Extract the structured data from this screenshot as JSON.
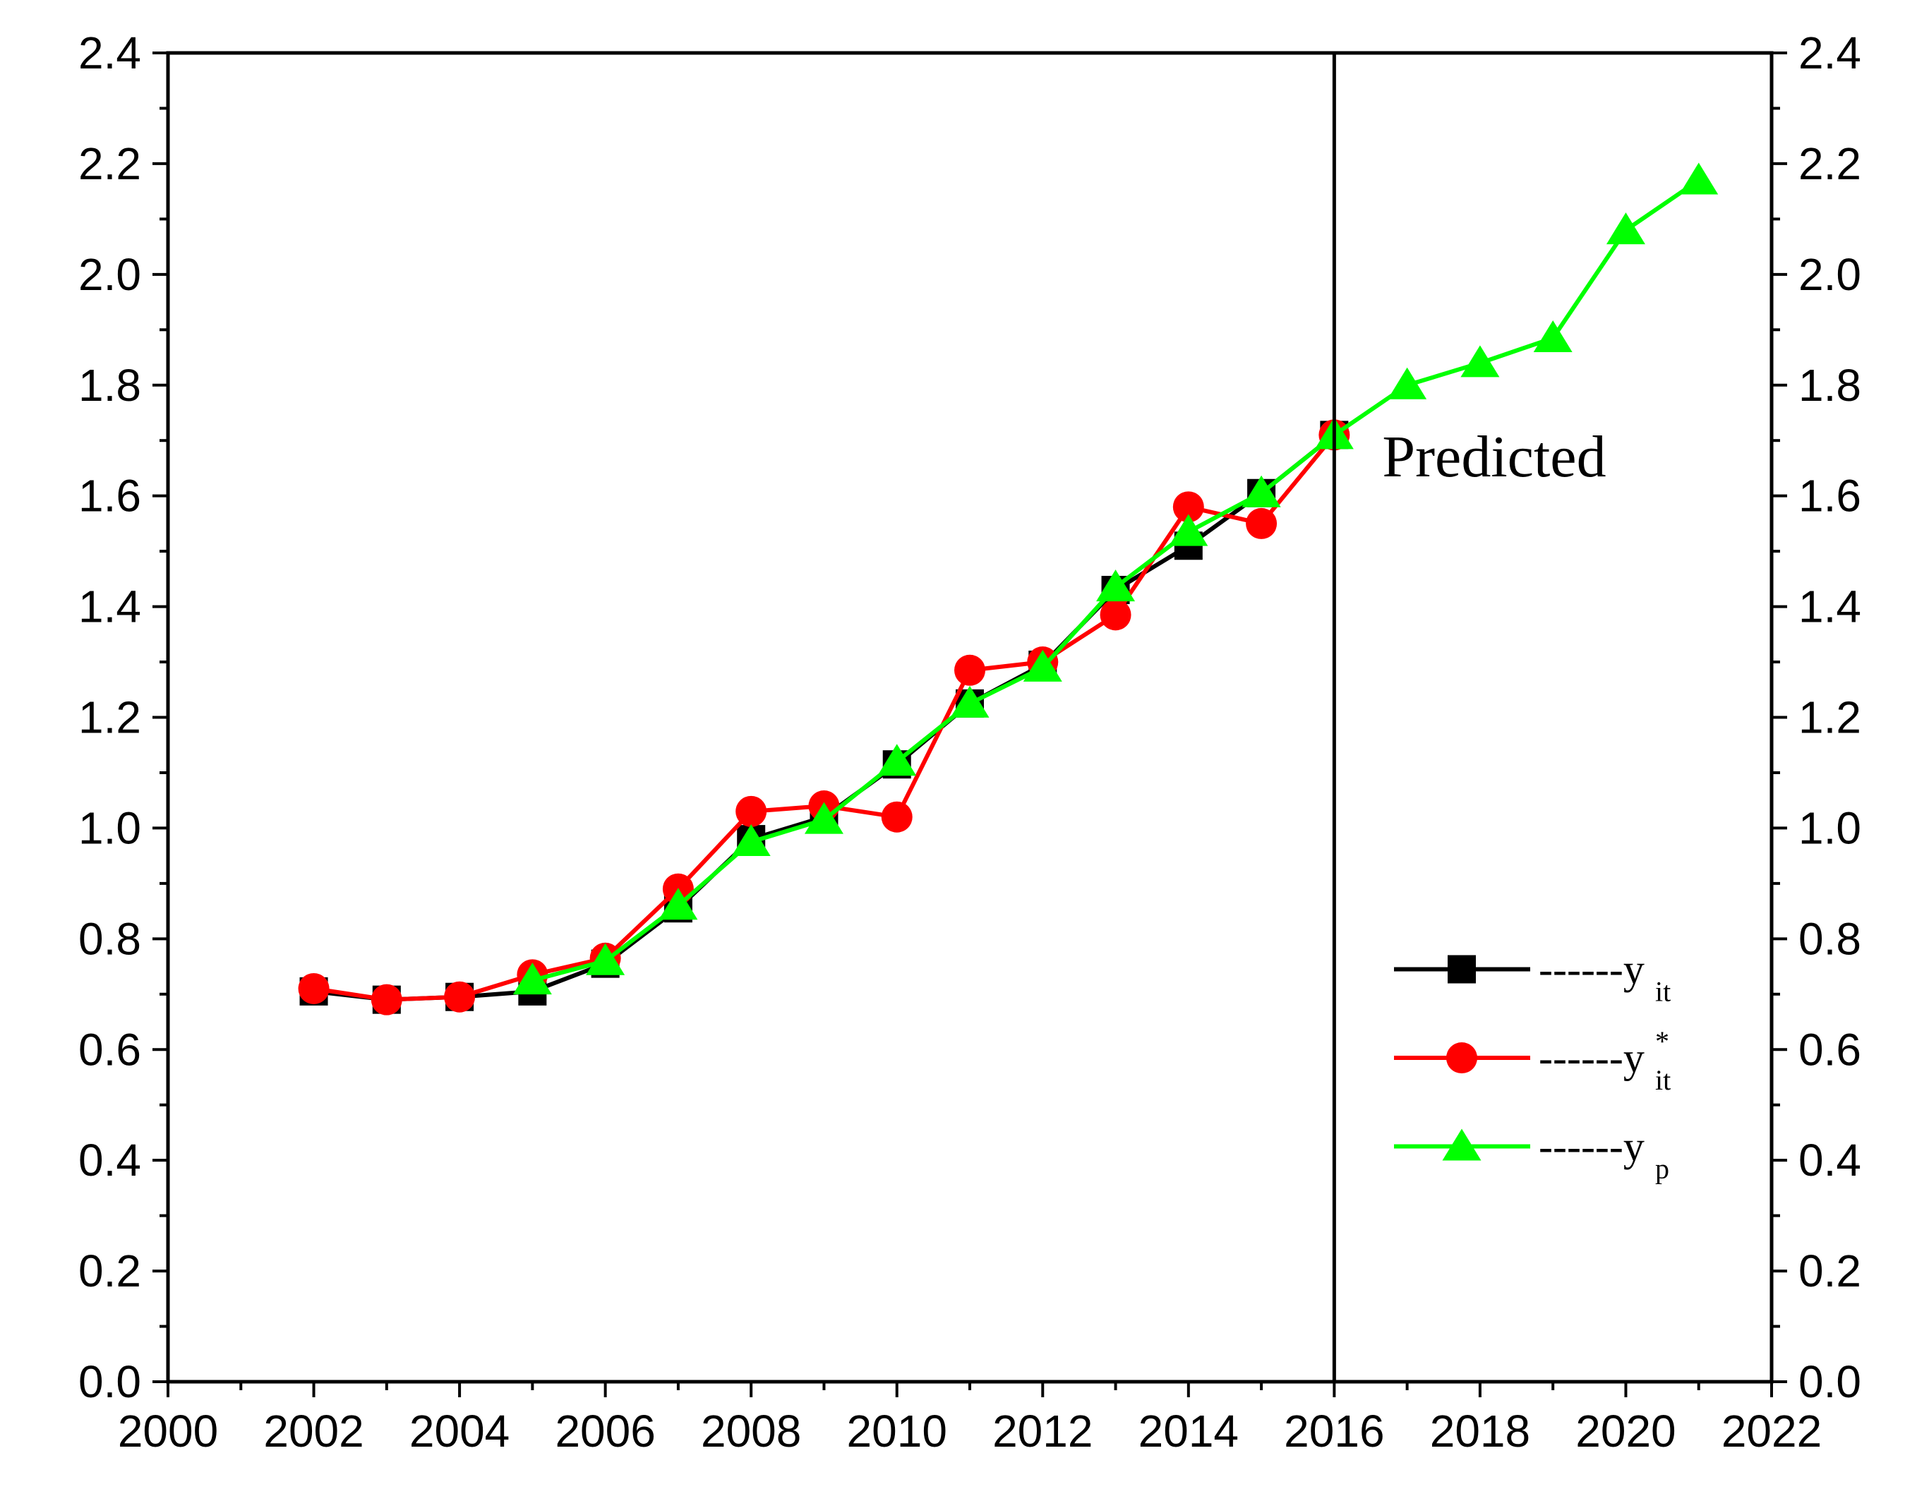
{
  "chart_data": {
    "type": "line",
    "title": "",
    "xlabel": "",
    "ylabel": "",
    "xlim": [
      2000,
      2022
    ],
    "ylim": [
      0.0,
      2.4
    ],
    "x_ticks": [
      "2000",
      "2002",
      "2004",
      "2006",
      "2008",
      "2010",
      "2012",
      "2014",
      "2016",
      "2018",
      "2020",
      "2022"
    ],
    "y_ticks": [
      "0.0",
      "0.2",
      "0.4",
      "0.6",
      "0.8",
      "1.0",
      "1.2",
      "1.4",
      "1.6",
      "1.8",
      "2.0",
      "2.2",
      "2.4"
    ],
    "y_right_ticks": [
      "0.0",
      "0.2",
      "0.4",
      "0.6",
      "0.8",
      "1.0",
      "1.2",
      "1.4",
      "1.6",
      "1.8",
      "2.0",
      "2.2",
      "2.4"
    ],
    "divider_x": 2016,
    "annotation": "Predicted",
    "legend_position": "bottom-right",
    "series": [
      {
        "name": "y_it",
        "legend_prefix": "------y",
        "legend_sub": "it",
        "legend_sup": "",
        "color": "#000000",
        "marker": "square",
        "x": [
          2002,
          2003,
          2004,
          2005,
          2006,
          2007,
          2008,
          2009,
          2010,
          2011,
          2012,
          2013,
          2014,
          2015,
          2016
        ],
        "values": [
          0.705,
          0.69,
          0.695,
          0.705,
          0.755,
          0.855,
          0.98,
          1.02,
          1.115,
          1.225,
          1.295,
          1.43,
          1.51,
          1.605,
          1.71
        ]
      },
      {
        "name": "y*_it",
        "legend_prefix": "------y",
        "legend_sub": "it",
        "legend_sup": "*",
        "color": "#ff0000",
        "marker": "circle",
        "x": [
          2002,
          2003,
          2004,
          2005,
          2006,
          2007,
          2008,
          2009,
          2010,
          2011,
          2012,
          2013,
          2014,
          2015,
          2016
        ],
        "values": [
          0.71,
          0.69,
          0.695,
          0.735,
          0.765,
          0.89,
          1.03,
          1.04,
          1.02,
          1.285,
          1.3,
          1.385,
          1.58,
          1.55,
          1.71
        ]
      },
      {
        "name": "y_p",
        "legend_prefix": "------y",
        "legend_sub": "p",
        "legend_sup": "",
        "color": "#00ff00",
        "marker": "triangle",
        "x": [
          2005,
          2006,
          2007,
          2008,
          2009,
          2010,
          2011,
          2012,
          2013,
          2014,
          2015,
          2016,
          2017,
          2018,
          2019,
          2020,
          2021
        ],
        "values": [
          0.725,
          0.76,
          0.86,
          0.975,
          1.015,
          1.12,
          1.225,
          1.29,
          1.435,
          1.535,
          1.605,
          1.71,
          1.8,
          1.84,
          1.885,
          2.08,
          2.17
        ]
      }
    ]
  }
}
